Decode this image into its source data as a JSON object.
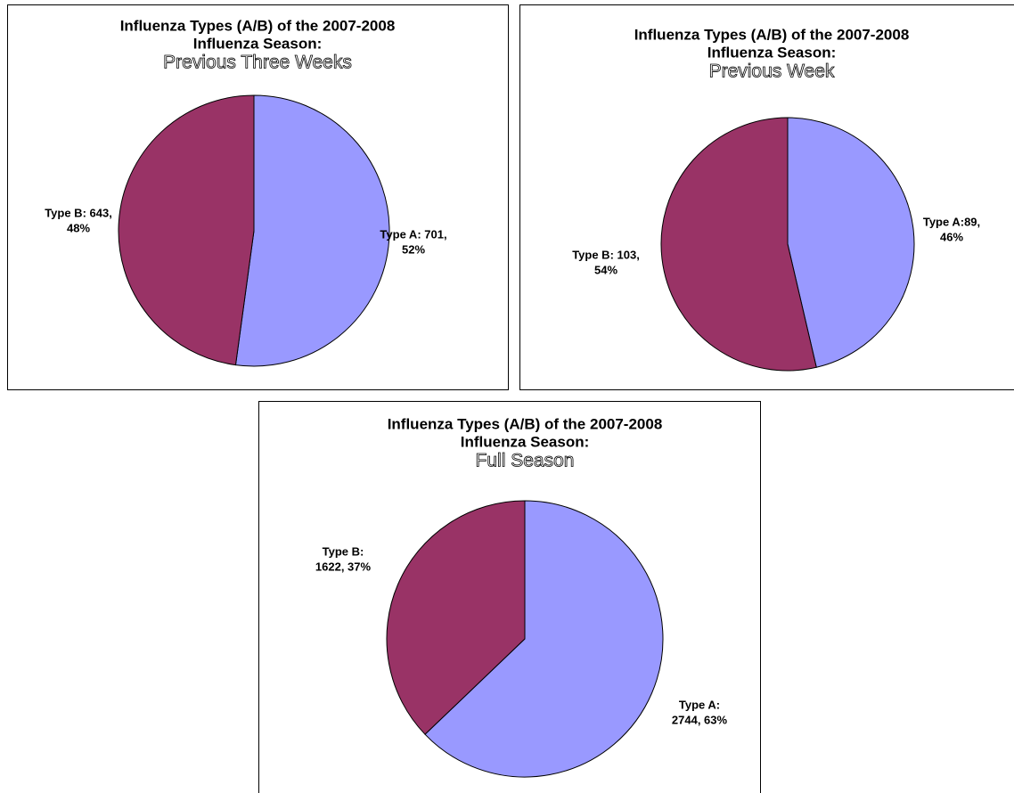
{
  "chart_data": [
    {
      "type": "pie",
      "title": [
        "Influenza Types (A/B) of the 2007-2008",
        "Influenza Season:"
      ],
      "subtitle": "Previous Three Weeks",
      "categories": [
        "Type A",
        "Type B"
      ],
      "values": [
        701,
        643
      ],
      "value_labels": [
        [
          "Type A: 701,",
          "52%"
        ],
        [
          "Type B: 643,",
          "48%"
        ]
      ],
      "colors": [
        "#9999ff",
        "#993366"
      ]
    },
    {
      "type": "pie",
      "title": [
        "Influenza Types (A/B) of the 2007-2008",
        "Influenza Season:"
      ],
      "subtitle": "Previous Week",
      "categories": [
        "Type A",
        "Type B"
      ],
      "values": [
        89,
        103
      ],
      "value_labels": [
        [
          "Type A:89,",
          "46%"
        ],
        [
          "Type B: 103,",
          "54%"
        ]
      ],
      "colors": [
        "#9999ff",
        "#993366"
      ]
    },
    {
      "type": "pie",
      "title": [
        "Influenza Types (A/B) of the 2007-2008",
        "Influenza Season:"
      ],
      "subtitle": "Full Season",
      "categories": [
        "Type A",
        "Type B"
      ],
      "values": [
        2744,
        1622
      ],
      "value_labels": [
        [
          "Type A:",
          "2744, 63%"
        ],
        [
          "Type B:",
          "1622, 37%"
        ]
      ],
      "colors": [
        "#9999ff",
        "#993366"
      ]
    }
  ]
}
